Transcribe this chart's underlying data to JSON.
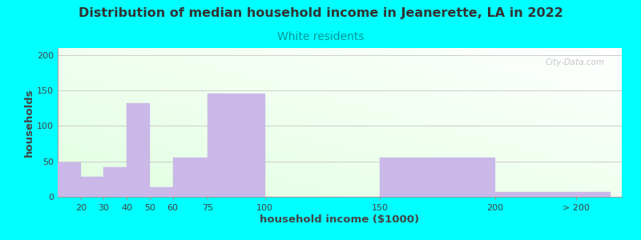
{
  "title": "Distribution of median household income in Jeanerette, LA in 2022",
  "subtitle": "White residents",
  "xlabel": "household income ($1000)",
  "ylabel": "households",
  "background_color": "#00FFFF",
  "bar_color": "#c9b8e8",
  "bar_edge_color": "#c9b8e8",
  "values": [
    48,
    28,
    42,
    132,
    13,
    55,
    146,
    0,
    55,
    7
  ],
  "bar_lefts": [
    10,
    20,
    30,
    40,
    50,
    60,
    75,
    100,
    150,
    200
  ],
  "bar_widths": [
    10,
    10,
    10,
    10,
    10,
    15,
    25,
    50,
    50,
    50
  ],
  "xlim": [
    10,
    255
  ],
  "ylim": [
    0,
    210
  ],
  "yticks": [
    0,
    50,
    100,
    150,
    200
  ],
  "xtick_labels": [
    "20",
    "30",
    "40",
    "50",
    "60",
    "75",
    "100",
    "150",
    "200",
    "> 200"
  ],
  "xtick_positions": [
    20,
    30,
    40,
    50,
    60,
    75,
    100,
    150,
    200,
    235
  ],
  "title_fontsize": 11.5,
  "subtitle_fontsize": 10,
  "subtitle_color": "#009999",
  "axis_label_fontsize": 9.5,
  "tick_fontsize": 8,
  "watermark": "City-Data.com"
}
